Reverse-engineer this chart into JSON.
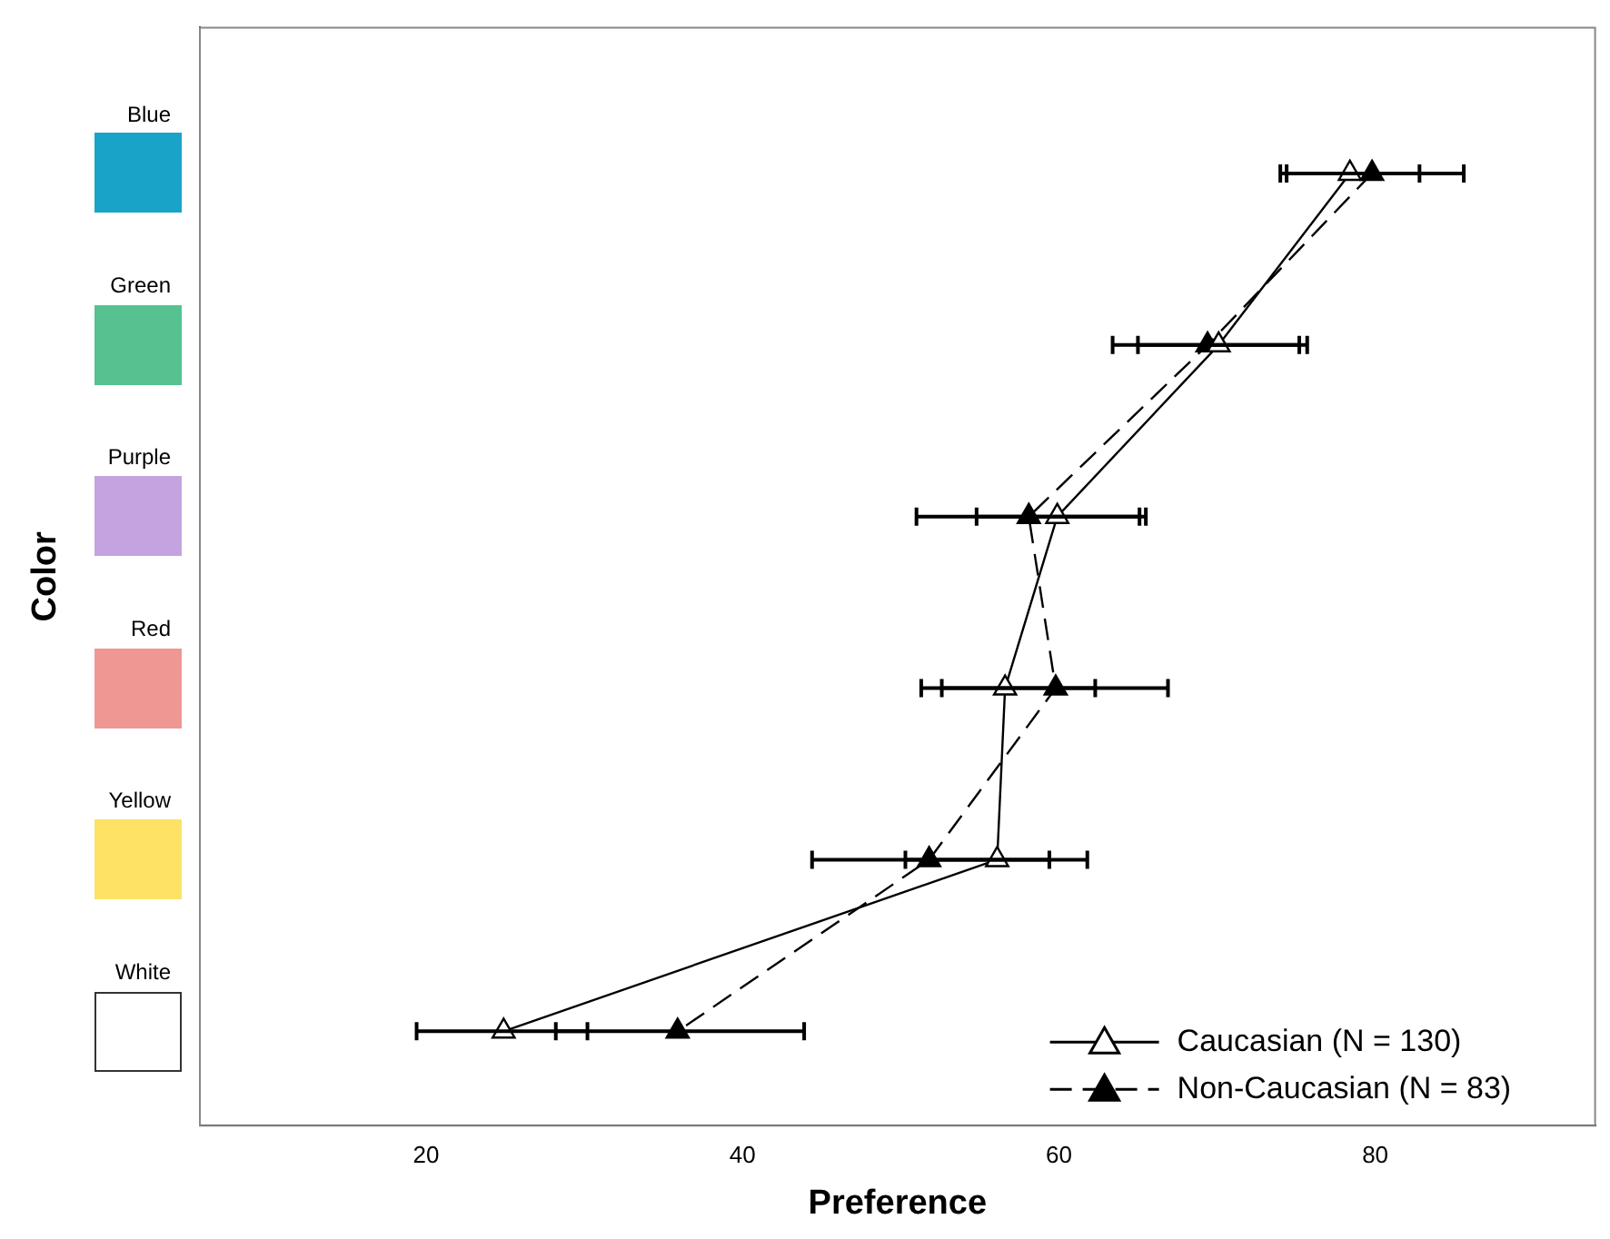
{
  "chart_data": {
    "type": "line",
    "xlabel": "Preference",
    "ylabel": "Color",
    "categories": [
      "Blue",
      "Green",
      "Purple",
      "Red",
      "Yellow",
      "White"
    ],
    "orientation": "horizontal",
    "xlim": [
      5.7,
      93.9
    ],
    "xticks": [
      20,
      40,
      60,
      80
    ],
    "grid": false,
    "legend": "bottom right",
    "marker": "triangle",
    "series": [
      {
        "name": "Caucasian (N = 130)",
        "color": "#000000",
        "line_style": "solid",
        "values": [
          78.4,
          70.1,
          59.9,
          56.6,
          56.1,
          24.9
        ],
        "errors": [
          [
            74.4,
            82.8
          ],
          [
            65.0,
            75.2
          ],
          [
            54.8,
            65.1
          ],
          [
            51.3,
            62.3
          ],
          [
            50.3,
            61.8
          ],
          [
            19.4,
            30.2
          ]
        ]
      },
      {
        "name": "Non-Caucasian (N = 83)",
        "color": "#000000",
        "line_style": "dashed",
        "values": [
          79.8,
          69.4,
          58.1,
          59.8,
          51.8,
          35.9
        ],
        "errors": [
          [
            74.0,
            85.6
          ],
          [
            63.4,
            75.7
          ],
          [
            51.0,
            65.5
          ],
          [
            52.6,
            66.9
          ],
          [
            44.4,
            59.4
          ],
          [
            28.2,
            43.9
          ]
        ]
      }
    ]
  }
}
